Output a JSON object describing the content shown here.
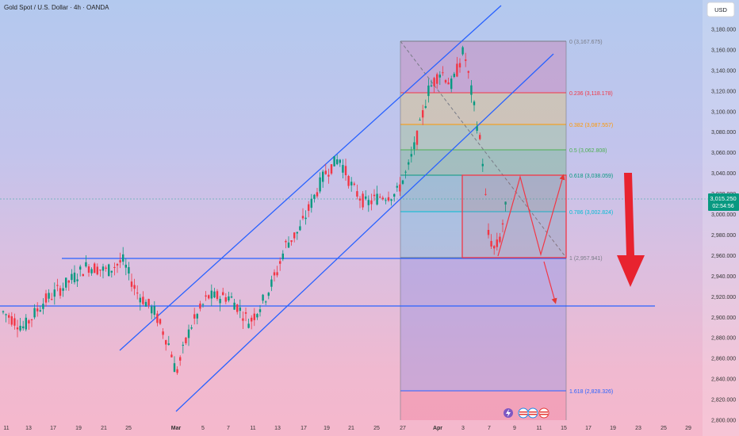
{
  "header": {
    "title": "Gold Spot / U.S. Dollar · 4h · OANDA"
  },
  "currency_button": "USD",
  "price_tag": {
    "price": "3,015.250",
    "countdown": "02:54:56"
  },
  "chart_data": {
    "type": "candlestick",
    "symbol": "Gold Spot / U.S. Dollar",
    "interval": "4h",
    "source": "OANDA",
    "y_range": [
      2800,
      3190
    ],
    "y_ticks": [
      "3,180.000",
      "3,160.000",
      "3,140.000",
      "3,120.000",
      "3,100.000",
      "3,080.000",
      "3,060.000",
      "3,040.000",
      "3,020.000",
      "3,000.000",
      "2,980.000",
      "2,960.000",
      "2,940.000",
      "2,920.000",
      "2,900.000",
      "2,880.000",
      "2,860.000",
      "2,840.000",
      "2,820.000",
      "2,800.000"
    ],
    "x_ticks": [
      "11",
      "13",
      "17",
      "19",
      "21",
      "25",
      "Mar",
      "5",
      "7",
      "11",
      "13",
      "17",
      "19",
      "21",
      "25",
      "27",
      "Apr",
      "3",
      "7",
      "9",
      "11",
      "15",
      "17",
      "19",
      "23",
      "25",
      "29"
    ],
    "last_price": 3015.25,
    "fib_levels": [
      {
        "label": "0 (3,167.675)",
        "ratio": 0,
        "price": 3167.675,
        "color": "#787b86"
      },
      {
        "label": "0.236 (3,118.178)",
        "ratio": 0.236,
        "price": 3118.178,
        "color": "#f23645"
      },
      {
        "label": "0.382 (3,087.557)",
        "ratio": 0.382,
        "price": 3087.557,
        "color": "#ff9800"
      },
      {
        "label": "0.5 (3,062.808)",
        "ratio": 0.5,
        "price": 3062.808,
        "color": "#4caf50"
      },
      {
        "label": "0.618 (3,038.059)",
        "ratio": 0.618,
        "price": 3038.059,
        "color": "#089981"
      },
      {
        "label": "0.786 (3,002.824)",
        "ratio": 0.786,
        "price": 3002.824,
        "color": "#00bcd4"
      },
      {
        "label": "1 (2,957.941)",
        "ratio": 1,
        "price": 2957.941,
        "color": "#787b86"
      },
      {
        "label": "1.618 (2,828.326)",
        "ratio": 1.618,
        "price": 2828.326,
        "color": "#2962ff"
      }
    ],
    "support_levels": [
      2957.941,
      2910
    ],
    "range_box": {
      "top": 3038.059,
      "bottom": 2957.941
    },
    "projection": "bearish"
  }
}
